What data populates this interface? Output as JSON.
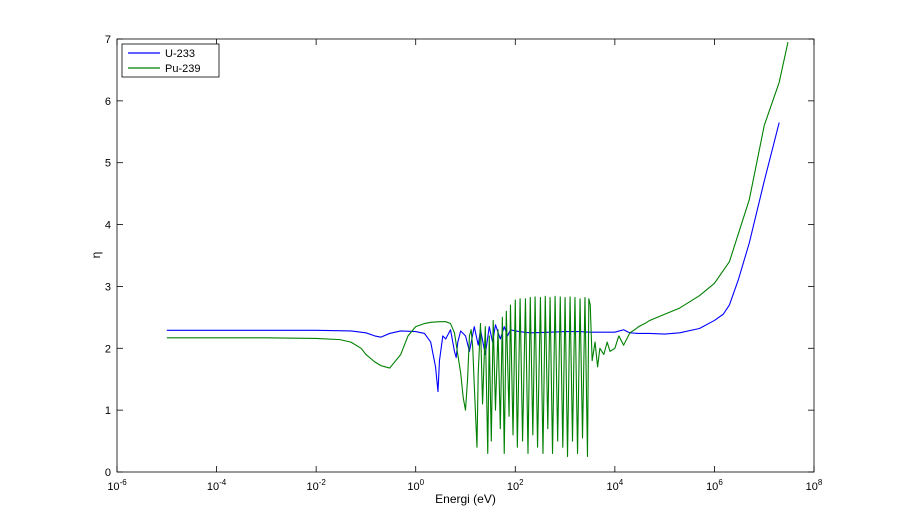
{
  "chart_data": {
    "type": "line",
    "title": "",
    "xlabel": "Energi (eV)",
    "ylabel": "η",
    "xscale": "log",
    "xlim": [
      1e-06,
      100000000.0
    ],
    "ylim": [
      0,
      7
    ],
    "x_ticks": [
      {
        "base": "10",
        "exp": "-6",
        "value": 1e-06
      },
      {
        "base": "10",
        "exp": "-4",
        "value": 0.0001
      },
      {
        "base": "10",
        "exp": "-2",
        "value": 0.01
      },
      {
        "base": "10",
        "exp": "0",
        "value": 1
      },
      {
        "base": "10",
        "exp": "2",
        "value": 100
      },
      {
        "base": "10",
        "exp": "4",
        "value": 10000
      },
      {
        "base": "10",
        "exp": "6",
        "value": 1000000
      },
      {
        "base": "10",
        "exp": "8",
        "value": 100000000
      }
    ],
    "y_ticks": [
      "0",
      "1",
      "2",
      "3",
      "4",
      "5",
      "6",
      "7"
    ],
    "grid": false,
    "legend_position": "top-left",
    "series": [
      {
        "name": "U-233",
        "color": "#0000ff",
        "x": [
          1e-05,
          0.001,
          0.01,
          0.05,
          0.1,
          0.15,
          0.2,
          0.3,
          0.5,
          1,
          1.5,
          2,
          2.5,
          2.8,
          3,
          3.5,
          4,
          5,
          6,
          6.5,
          7,
          8,
          10,
          12,
          15,
          18,
          20,
          25,
          30,
          35,
          40,
          50,
          60,
          70,
          80,
          100,
          150,
          200,
          500,
          1000,
          2000,
          3000,
          5000,
          10000,
          15000,
          20000,
          30000,
          50000,
          100000,
          200000,
          500000,
          1000000,
          1500000,
          2000000,
          3000000,
          5000000,
          10000000,
          20000000
        ],
        "y": [
          2.29,
          2.29,
          2.29,
          2.28,
          2.25,
          2.2,
          2.18,
          2.24,
          2.28,
          2.27,
          2.24,
          2.1,
          1.7,
          1.3,
          1.8,
          2.2,
          2.15,
          2.3,
          1.95,
          1.85,
          2.1,
          2.28,
          2.2,
          1.95,
          2.35,
          2.05,
          2.3,
          1.9,
          2.35,
          2.1,
          2.38,
          2.15,
          2.35,
          2.2,
          2.3,
          2.28,
          2.26,
          2.25,
          2.26,
          2.27,
          2.27,
          2.26,
          2.26,
          2.26,
          2.3,
          2.25,
          2.24,
          2.24,
          2.23,
          2.25,
          2.32,
          2.45,
          2.55,
          2.7,
          3.1,
          3.7,
          4.7,
          5.65
        ]
      },
      {
        "name": "Pu-239",
        "color": "#008000",
        "x": [
          1e-05,
          0.001,
          0.01,
          0.03,
          0.05,
          0.08,
          0.1,
          0.15,
          0.2,
          0.3,
          0.5,
          0.7,
          1,
          1.5,
          2,
          3,
          4,
          5,
          6,
          7,
          8,
          9,
          10,
          11,
          12,
          13,
          14,
          15,
          17,
          18,
          20,
          22,
          25,
          28,
          30,
          33,
          36,
          40,
          45,
          50,
          55,
          60,
          66,
          75,
          80,
          90,
          100,
          110,
          125,
          140,
          160,
          180,
          200,
          225,
          250,
          280,
          320,
          360,
          400,
          450,
          500,
          560,
          630,
          710,
          800,
          900,
          1000,
          1120,
          1260,
          1410,
          1580,
          1780,
          2000,
          2240,
          2510,
          2820,
          3000,
          3200,
          3500,
          4000,
          4500,
          5000,
          6000,
          7000,
          8000,
          10000,
          12000,
          15000,
          20000,
          25000,
          30000,
          40000,
          50000,
          100000,
          200000,
          500000,
          1000000,
          2000000,
          5000000,
          10000000,
          20000000,
          30000000
        ],
        "y": [
          2.17,
          2.17,
          2.16,
          2.14,
          2.1,
          2.0,
          1.9,
          1.78,
          1.72,
          1.68,
          1.9,
          2.2,
          2.35,
          2.4,
          2.42,
          2.43,
          2.43,
          2.4,
          2.25,
          1.9,
          1.6,
          1.2,
          1.0,
          1.5,
          2.2,
          2.3,
          2.0,
          1.4,
          0.4,
          1.6,
          2.4,
          1.1,
          2.35,
          0.3,
          2.2,
          0.5,
          2.45,
          1.0,
          2.3,
          0.7,
          2.5,
          0.3,
          2.6,
          0.9,
          2.7,
          0.6,
          2.78,
          0.4,
          2.8,
          0.5,
          2.8,
          0.3,
          2.82,
          0.6,
          2.83,
          0.4,
          2.82,
          0.3,
          2.84,
          0.7,
          2.82,
          0.3,
          2.84,
          0.5,
          2.83,
          0.4,
          2.82,
          0.25,
          2.83,
          0.5,
          2.82,
          0.3,
          2.8,
          0.55,
          2.82,
          0.25,
          2.8,
          2.7,
          1.8,
          2.1,
          1.7,
          2.0,
          1.9,
          2.1,
          1.95,
          2.0,
          2.2,
          2.05,
          2.25,
          2.3,
          2.35,
          2.4,
          2.45,
          2.55,
          2.65,
          2.85,
          3.05,
          3.4,
          4.4,
          5.6,
          6.3,
          6.95
        ]
      }
    ]
  }
}
